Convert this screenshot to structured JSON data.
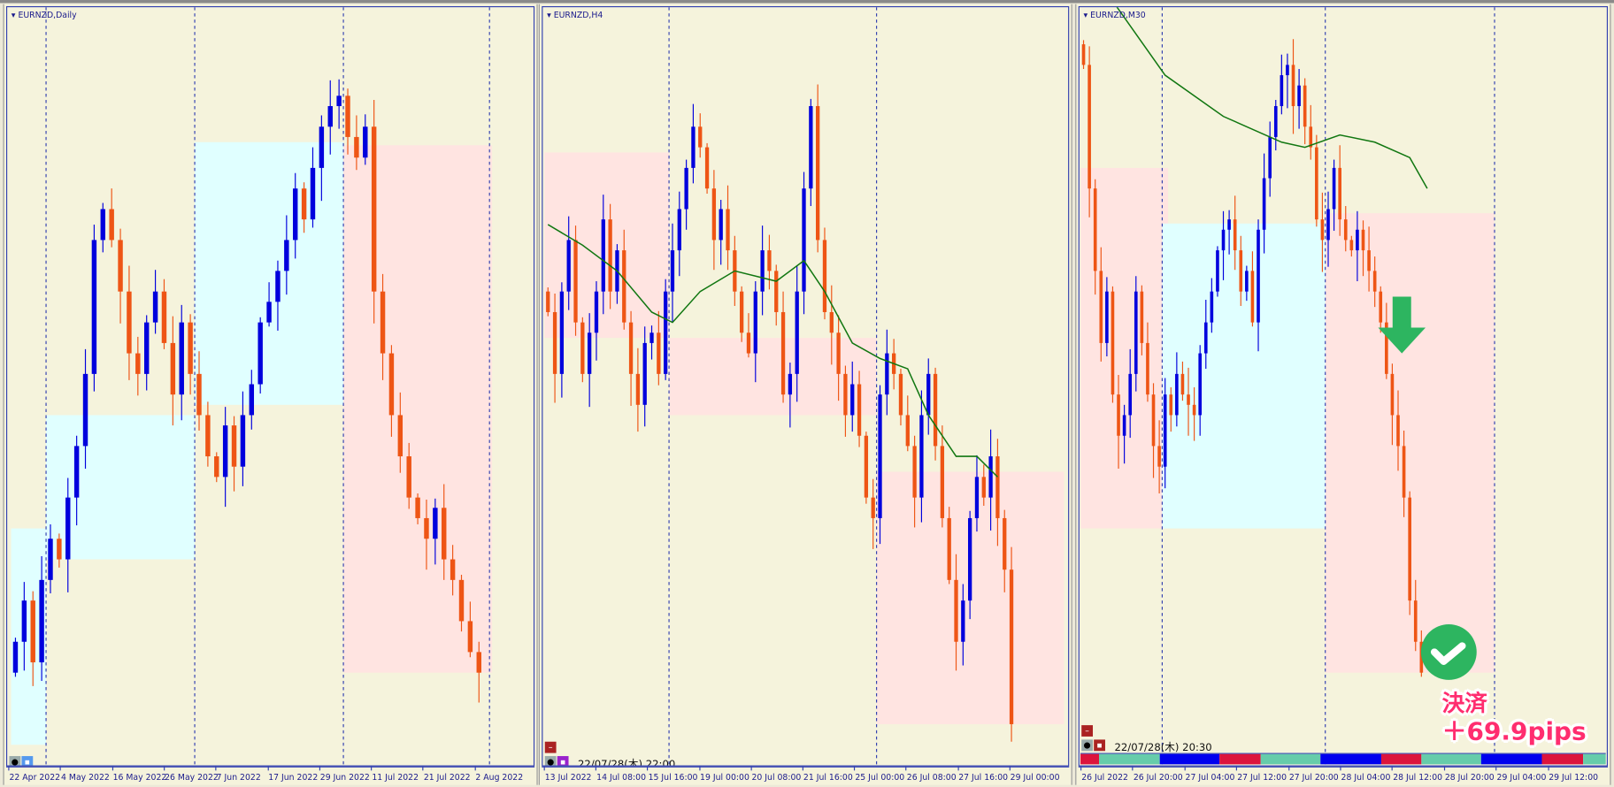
{
  "colors": {
    "background": "#f5f3dc",
    "bull": "#0000dd",
    "bear": "#ee5515",
    "ma": "#117711",
    "zone_pink": "#ffe4e1",
    "zone_cyan": "#e0ffff",
    "arrow": "#2db560",
    "check": "#2db560",
    "annotation": "#ff2d6f"
  },
  "panels": [
    {
      "title": "EURNZD,Daily",
      "timeframe": "Daily",
      "time_labels": [
        "22 Apr 2022",
        "4 May 2022",
        "16 May 2022",
        "26 May 2022",
        "7 Jun 2022",
        "17 Jun 2022",
        "29 Jun 2022",
        "11 Jul 2022",
        "21 Jul 2022",
        "2 Aug 2022"
      ],
      "closes": [
        120,
        160,
        100,
        180,
        220,
        200,
        260,
        310,
        380,
        510,
        540,
        510,
        460,
        400,
        380,
        430,
        460,
        410,
        360,
        430,
        380,
        340,
        300,
        280,
        330,
        290,
        340,
        370,
        430,
        450,
        480,
        510,
        560,
        530,
        580,
        620,
        640,
        650,
        610,
        590,
        620,
        460,
        400,
        340,
        300,
        260,
        240,
        220,
        250,
        200,
        180,
        140,
        110,
        90
      ],
      "zones": [
        {
          "type": "cyan",
          "from": 0,
          "to": 3,
          "top": 230,
          "bottom": 20
        },
        {
          "type": "cyan",
          "from": 4,
          "to": 20,
          "top": 340,
          "bottom": 200
        },
        {
          "type": "cyan",
          "from": 21,
          "to": 37,
          "top": 605,
          "bottom": 350
        },
        {
          "type": "pink",
          "from": 38,
          "to": 54,
          "top": 602,
          "bottom": 90
        }
      ],
      "separators": [
        4,
        21,
        38,
        54
      ],
      "ma": []
    },
    {
      "title": "EURNZD,H4",
      "timeframe": "H4",
      "datetime": "22/07/28(木) 22:00",
      "time_labels": [
        "13 Jul 2022",
        "14 Jul 08:00",
        "15 Jul 16:00",
        "19 Jul 00:00",
        "20 Jul 08:00",
        "21 Jul 16:00",
        "25 Jul 00:00",
        "26 Jul 08:00",
        "27 Jul 16:00",
        "29 Jul 00:00"
      ],
      "closes": [
        440,
        380,
        460,
        510,
        430,
        380,
        420,
        460,
        530,
        460,
        500,
        430,
        380,
        350,
        410,
        420,
        380,
        460,
        500,
        540,
        580,
        620,
        600,
        560,
        510,
        540,
        500,
        460,
        420,
        400,
        460,
        500,
        480,
        440,
        360,
        380,
        460,
        560,
        640,
        510,
        440,
        420,
        380,
        340,
        370,
        320,
        260,
        240,
        360,
        400,
        380,
        340,
        310,
        260,
        340,
        380,
        310,
        240,
        180,
        120,
        160,
        240,
        280,
        260,
        300,
        240,
        190,
        40
      ],
      "zones": [
        {
          "type": "pink",
          "from": 0,
          "to": 17,
          "top": 595,
          "bottom": 415
        },
        {
          "type": "pink",
          "from": 18,
          "to": 47,
          "top": 415,
          "bottom": 340
        },
        {
          "type": "pink",
          "from": 48,
          "to": 76,
          "top": 285,
          "bottom": 40
        }
      ],
      "separators": [
        18,
        48
      ],
      "ma": [
        [
          0,
          525
        ],
        [
          5,
          505
        ],
        [
          10,
          480
        ],
        [
          15,
          440
        ],
        [
          18,
          430
        ],
        [
          22,
          460
        ],
        [
          27,
          480
        ],
        [
          33,
          470
        ],
        [
          37,
          490
        ],
        [
          40,
          460
        ],
        [
          44,
          410
        ],
        [
          48,
          395
        ],
        [
          52,
          385
        ],
        [
          55,
          340
        ],
        [
          59,
          300
        ],
        [
          62,
          300
        ],
        [
          65,
          280
        ]
      ]
    },
    {
      "title": "EURNZD,M30",
      "timeframe": "M30",
      "datetime": "22/07/28(木) 20:30",
      "time_labels": [
        "26 Jul 2022",
        "26 Jul 20:00",
        "27 Jul 04:00",
        "27 Jul 12:00",
        "27 Jul 20:00",
        "28 Jul 04:00",
        "28 Jul 12:00",
        "28 Jul 20:00",
        "29 Jul 04:00",
        "29 Jul 12:00"
      ],
      "closes": [
        680,
        560,
        480,
        410,
        460,
        360,
        320,
        340,
        380,
        460,
        410,
        360,
        310,
        290,
        360,
        340,
        380,
        360,
        350,
        340,
        400,
        430,
        460,
        500,
        520,
        530,
        500,
        460,
        480,
        430,
        520,
        570,
        610,
        640,
        670,
        680,
        640,
        660,
        620,
        600,
        530,
        510,
        540,
        580,
        530,
        510,
        500,
        520,
        500,
        480,
        460,
        430,
        380,
        340,
        310,
        260,
        160,
        120,
        90
      ],
      "zones": [
        {
          "type": "pink",
          "from": 0,
          "to": 14,
          "top": 580,
          "bottom": 230
        },
        {
          "type": "cyan",
          "from": 14,
          "to": 42,
          "top": 526,
          "bottom": 230
        },
        {
          "type": "pink",
          "from": 42,
          "to": 70,
          "top": 536,
          "bottom": 90
        }
      ],
      "separators": [
        14,
        42,
        70
      ],
      "ma": [
        [
          4,
          750
        ],
        [
          14,
          670
        ],
        [
          24,
          630
        ],
        [
          34,
          605
        ],
        [
          38,
          600
        ],
        [
          44,
          612
        ],
        [
          50,
          605
        ],
        [
          56,
          590
        ],
        [
          59,
          560
        ]
      ],
      "signal": {
        "arrow": "down-arrow",
        "check": "check-circle",
        "label_line1": "決済",
        "label_line2": "＋69.9pips"
      }
    }
  ]
}
